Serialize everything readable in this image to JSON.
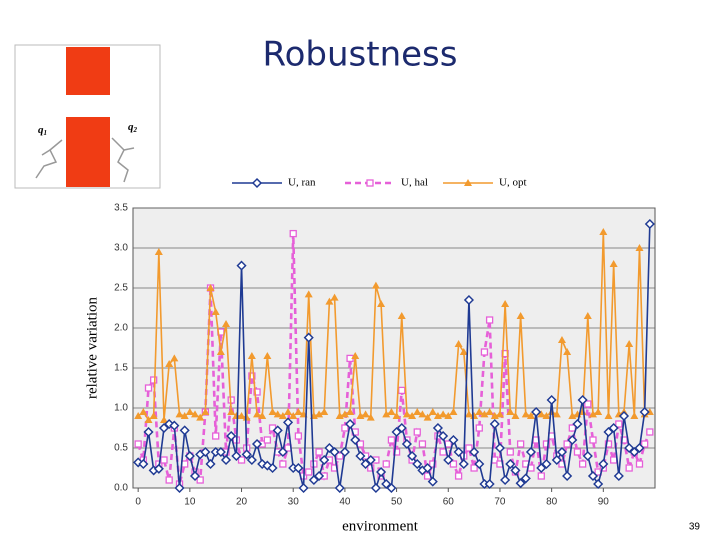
{
  "title": "Robustness",
  "figure": {
    "labels": [
      {
        "letter": "q",
        "sub": "1"
      },
      {
        "letter": "q",
        "sub": "2"
      }
    ]
  },
  "page_number": "39",
  "chart_data": {
    "type": "line",
    "x_label": "environment",
    "y_label": "relative variation",
    "x": [
      0,
      1,
      2,
      3,
      4,
      5,
      6,
      7,
      8,
      9,
      10,
      11,
      12,
      13,
      14,
      15,
      16,
      17,
      18,
      19,
      20,
      21,
      22,
      23,
      24,
      25,
      26,
      27,
      28,
      29,
      30,
      31,
      32,
      33,
      34,
      35,
      36,
      37,
      38,
      39,
      40,
      41,
      42,
      43,
      44,
      45,
      46,
      47,
      48,
      49,
      50,
      51,
      52,
      53,
      54,
      55,
      56,
      57,
      58,
      59,
      60,
      61,
      62,
      63,
      64,
      65,
      66,
      67,
      68,
      69,
      70,
      71,
      72,
      73,
      74,
      75,
      76,
      77,
      78,
      79,
      80,
      81,
      82,
      83,
      84,
      85,
      86,
      87,
      88,
      89,
      90,
      91,
      92,
      93,
      94,
      95,
      96,
      97,
      98,
      99
    ],
    "xlim": [
      -1,
      100
    ],
    "xticks": [
      0,
      10,
      20,
      30,
      40,
      50,
      60,
      70,
      80,
      90
    ],
    "ylim": [
      0,
      3.5
    ],
    "yticks": [
      {
        "value": 0,
        "label": "0.0"
      },
      {
        "value": 0.5,
        "label": "0.5"
      },
      {
        "value": 1,
        "label": "1.0"
      },
      {
        "value": 1.5,
        "label": "1.5"
      },
      {
        "value": 2,
        "label": "2.0"
      },
      {
        "value": 2.5,
        "label": "2.5"
      },
      {
        "value": 3,
        "label": "3.0"
      },
      {
        "value": 3.5,
        "label": "3.5"
      }
    ],
    "grid": true,
    "legend": "top",
    "series": [
      {
        "name": "U, ran",
        "color": "#1f3a93",
        "marker": "diamond",
        "dash": false,
        "values": [
          0.32,
          0.3,
          0.7,
          0.22,
          0.24,
          0.75,
          0.8,
          0.78,
          0.0,
          0.72,
          0.4,
          0.15,
          0.42,
          0.45,
          0.3,
          0.45,
          0.45,
          0.35,
          0.65,
          0.4,
          2.78,
          0.42,
          0.35,
          0.55,
          0.3,
          0.28,
          0.25,
          0.72,
          0.45,
          0.82,
          0.25,
          0.25,
          0.0,
          1.88,
          0.1,
          0.15,
          0.35,
          0.5,
          0.45,
          0.0,
          0.45,
          0.8,
          0.6,
          0.4,
          0.3,
          0.35,
          0.0,
          0.2,
          0.05,
          0.0,
          0.7,
          0.75,
          0.55,
          0.4,
          0.3,
          0.22,
          0.25,
          0.08,
          0.75,
          0.65,
          0.35,
          0.6,
          0.45,
          0.3,
          2.35,
          0.45,
          0.3,
          0.05,
          0.05,
          0.8,
          0.5,
          0.1,
          0.3,
          0.22,
          0.06,
          0.12,
          0.45,
          0.95,
          0.25,
          0.3,
          1.1,
          0.35,
          0.45,
          0.15,
          0.6,
          0.8,
          1.1,
          0.4,
          0.15,
          0.05,
          0.3,
          0.7,
          0.75,
          0.15,
          0.9,
          0.5,
          0.45,
          0.5,
          0.95,
          3.3
        ]
      },
      {
        "name": "U, hal",
        "color": "#e660d8",
        "marker": "square",
        "dash": true,
        "values": [
          0.55,
          0.35,
          1.25,
          1.35,
          0.3,
          0.35,
          0.1,
          0.75,
          0.05,
          0.3,
          0.4,
          0.2,
          0.1,
          0.95,
          2.5,
          0.65,
          1.95,
          0.45,
          1.1,
          0.6,
          0.35,
          0.5,
          1.4,
          1.2,
          0.55,
          0.6,
          0.75,
          0.45,
          0.3,
          0.5,
          3.18,
          0.65,
          0.15,
          0.2,
          0.3,
          0.45,
          0.15,
          0.35,
          0.25,
          0.4,
          0.75,
          1.62,
          0.7,
          0.55,
          0.4,
          0.25,
          0.35,
          0.15,
          0.3,
          0.6,
          0.45,
          1.22,
          0.6,
          0.35,
          0.7,
          0.55,
          0.15,
          0.3,
          0.65,
          0.45,
          0.55,
          0.3,
          0.15,
          0.4,
          0.5,
          0.25,
          0.75,
          1.7,
          2.1,
          0.35,
          0.3,
          1.68,
          0.45,
          0.2,
          0.55,
          0.3,
          0.25,
          0.6,
          0.15,
          0.55,
          0.65,
          0.4,
          0.3,
          0.55,
          0.75,
          0.45,
          0.3,
          1.05,
          0.6,
          0.2,
          0.25,
          0.55,
          0.35,
          0.8,
          0.6,
          0.25,
          0.45,
          0.3,
          0.55,
          0.7
        ]
      },
      {
        "name": "U, opt",
        "color": "#f29a2e",
        "marker": "triangle",
        "dash": false,
        "values": [
          0.9,
          0.95,
          0.85,
          0.9,
          2.95,
          0.85,
          1.55,
          1.62,
          0.92,
          0.9,
          0.95,
          0.92,
          0.88,
          0.95,
          2.5,
          2.2,
          1.7,
          2.05,
          0.95,
          0.9,
          0.9,
          0.88,
          1.65,
          0.92,
          0.9,
          1.65,
          0.95,
          0.92,
          0.9,
          0.95,
          0.9,
          0.95,
          0.92,
          2.42,
          0.9,
          0.92,
          0.95,
          2.33,
          2.38,
          0.9,
          0.92,
          0.95,
          1.65,
          0.9,
          0.92,
          0.88,
          2.53,
          2.3,
          0.92,
          0.95,
          0.9,
          2.15,
          0.92,
          0.9,
          0.95,
          0.92,
          0.88,
          0.95,
          0.9,
          0.92,
          0.9,
          0.95,
          1.8,
          1.7,
          0.92,
          0.9,
          0.95,
          0.92,
          0.95,
          0.9,
          0.92,
          2.3,
          0.95,
          0.9,
          2.15,
          0.92,
          0.9,
          0.95,
          0.92,
          0.9,
          0.95,
          0.92,
          1.85,
          1.7,
          0.9,
          0.92,
          0.95,
          2.15,
          0.92,
          0.95,
          3.2,
          0.9,
          2.8,
          0.92,
          0.95,
          1.8,
          0.9,
          3.0,
          0.92,
          0.95
        ]
      }
    ]
  }
}
